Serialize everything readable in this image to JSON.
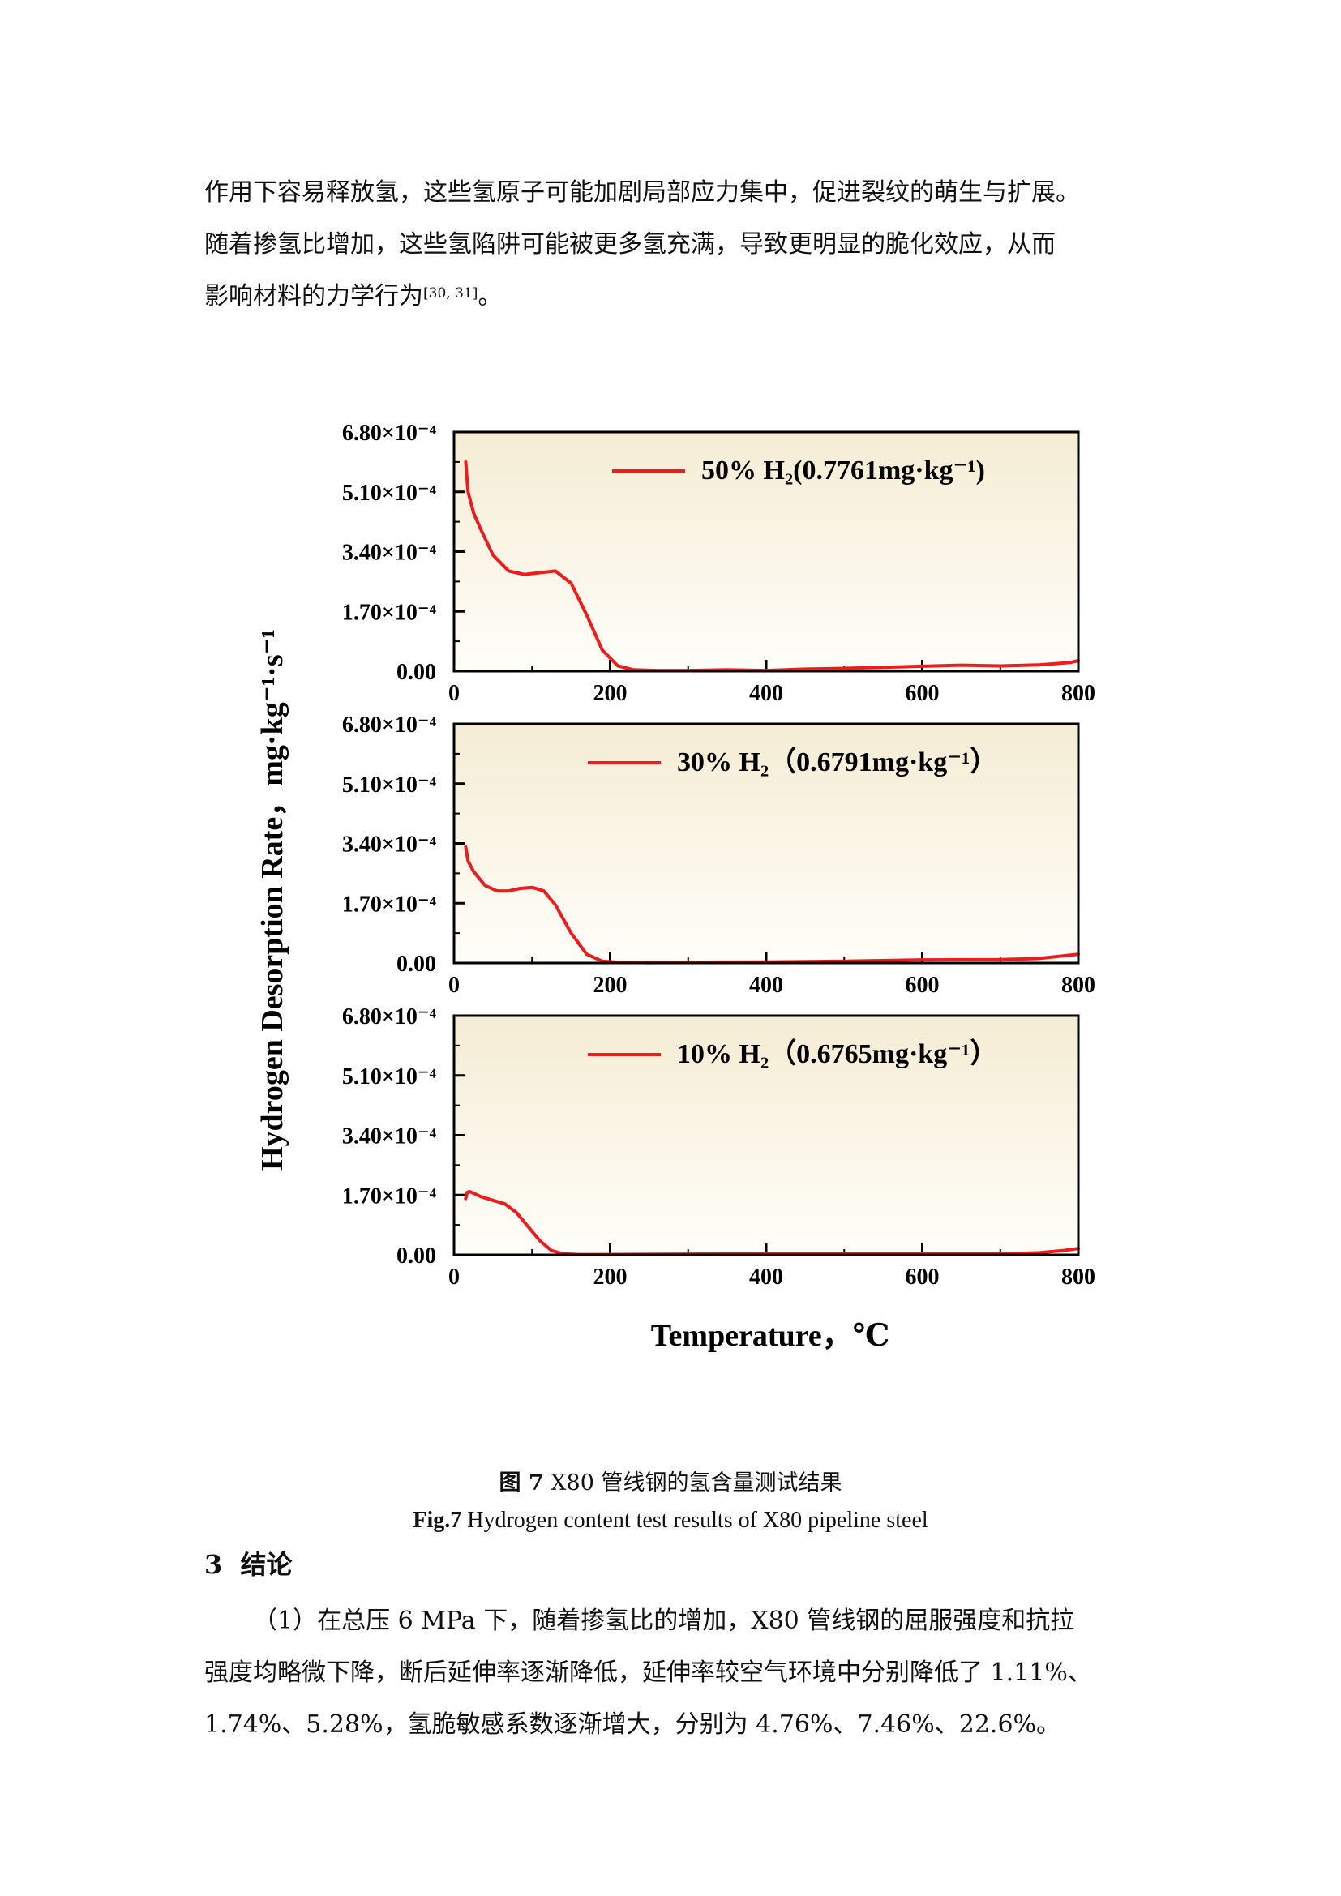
{
  "intro": {
    "line1": "作用下容易释放氢，这些氢原子可能加剧局部应力集中，促进裂纹的萌生与扩展。",
    "line2": "随着掺氢比增加，这些氢陷阱可能被更多氢充满，导致更明显的脆化效应，从而",
    "line3": "影响材料的力学行为",
    "citation": "[30, 31]",
    "line3_end": "。"
  },
  "chart_data": {
    "type": "line",
    "ylabel": "Hydrogen Desorption Rate，mg·kg⁻¹·s⁻¹",
    "xlabel": "Temperature，℃",
    "xlim": [
      0,
      800
    ],
    "ylim": [
      0,
      0.00068
    ],
    "x_ticks": [
      "0",
      "200",
      "400",
      "600",
      "800"
    ],
    "y_ticks": [
      "0.00",
      "1.70×10⁻⁴",
      "3.40×10⁻⁴",
      "5.10×10⁻⁴",
      "6.80×10⁻⁴"
    ],
    "y_tick_values": [
      0,
      0.00017,
      0.00034,
      0.00051,
      0.00068
    ],
    "series_color": "#ee1c1c",
    "panels": [
      {
        "legend": "50% H₂(0.7761mg·kg⁻¹)",
        "x": [
          15,
          18,
          25,
          35,
          50,
          70,
          90,
          110,
          130,
          150,
          170,
          190,
          210,
          230,
          260,
          300,
          350,
          400,
          450,
          500,
          550,
          600,
          650,
          700,
          750,
          790,
          800
        ],
        "y": [
          0.000595,
          0.00051,
          0.00045,
          0.0004,
          0.00033,
          0.000285,
          0.000275,
          0.00028,
          0.000285,
          0.00025,
          0.00016,
          6e-05,
          1.5e-05,
          4e-06,
          2e-06,
          2e-06,
          4e-06,
          2e-06,
          6e-06,
          8e-06,
          1.1e-05,
          1.4e-05,
          1.7e-05,
          1.5e-05,
          1.8e-05,
          2.5e-05,
          3e-05
        ]
      },
      {
        "legend": "30% H₂（0.6791mg·kg⁻¹）",
        "x": [
          15,
          18,
          25,
          40,
          55,
          70,
          85,
          100,
          115,
          130,
          150,
          170,
          190,
          210,
          250,
          300,
          400,
          500,
          600,
          700,
          750,
          780,
          800
        ],
        "y": [
          0.00033,
          0.00029,
          0.00026,
          0.00022,
          0.000205,
          0.000205,
          0.000212,
          0.000215,
          0.000205,
          0.000165,
          8.5e-05,
          2.5e-05,
          5e-06,
          2e-06,
          1e-06,
          2e-06,
          3e-06,
          5e-06,
          9e-06,
          1e-05,
          1.3e-05,
          2e-05,
          2.5e-05
        ]
      },
      {
        "legend": "10% H₂（0.6765mg·kg⁻¹）",
        "x": [
          15,
          17,
          20,
          25,
          35,
          50,
          65,
          80,
          95,
          110,
          125,
          140,
          160,
          200,
          300,
          400,
          500,
          600,
          700,
          750,
          780,
          800
        ],
        "y": [
          0.00016,
          0.000178,
          0.00018,
          0.000175,
          0.000165,
          0.000155,
          0.000145,
          0.00012,
          8e-05,
          4e-05,
          1.2e-05,
          3e-06,
          1e-06,
          1e-06,
          2e-06,
          3e-06,
          3e-06,
          3e-06,
          3e-06,
          6e-06,
          1.2e-05,
          1.8e-05
        ]
      }
    ]
  },
  "caption": {
    "cn_label": "图 7",
    "cn_text": "X80 管线钢的氢含量测试结果",
    "en_label": "Fig.7",
    "en_text": "Hydrogen content test results of X80 pipeline steel"
  },
  "section": {
    "number": "3",
    "title": "结论"
  },
  "conclusion": {
    "line1": "（1）在总压 6 MPa 下，随着掺氢比的增加，X80 管线钢的屈服强度和抗拉",
    "line2": "强度均略微下降，断后延伸率逐渐降低，延伸率较空气环境中分别降低了 1.11%、",
    "line3": "1.74%、5.28%，氢脆敏感系数逐渐增大，分别为 4.76%、7.46%、22.6%。"
  }
}
